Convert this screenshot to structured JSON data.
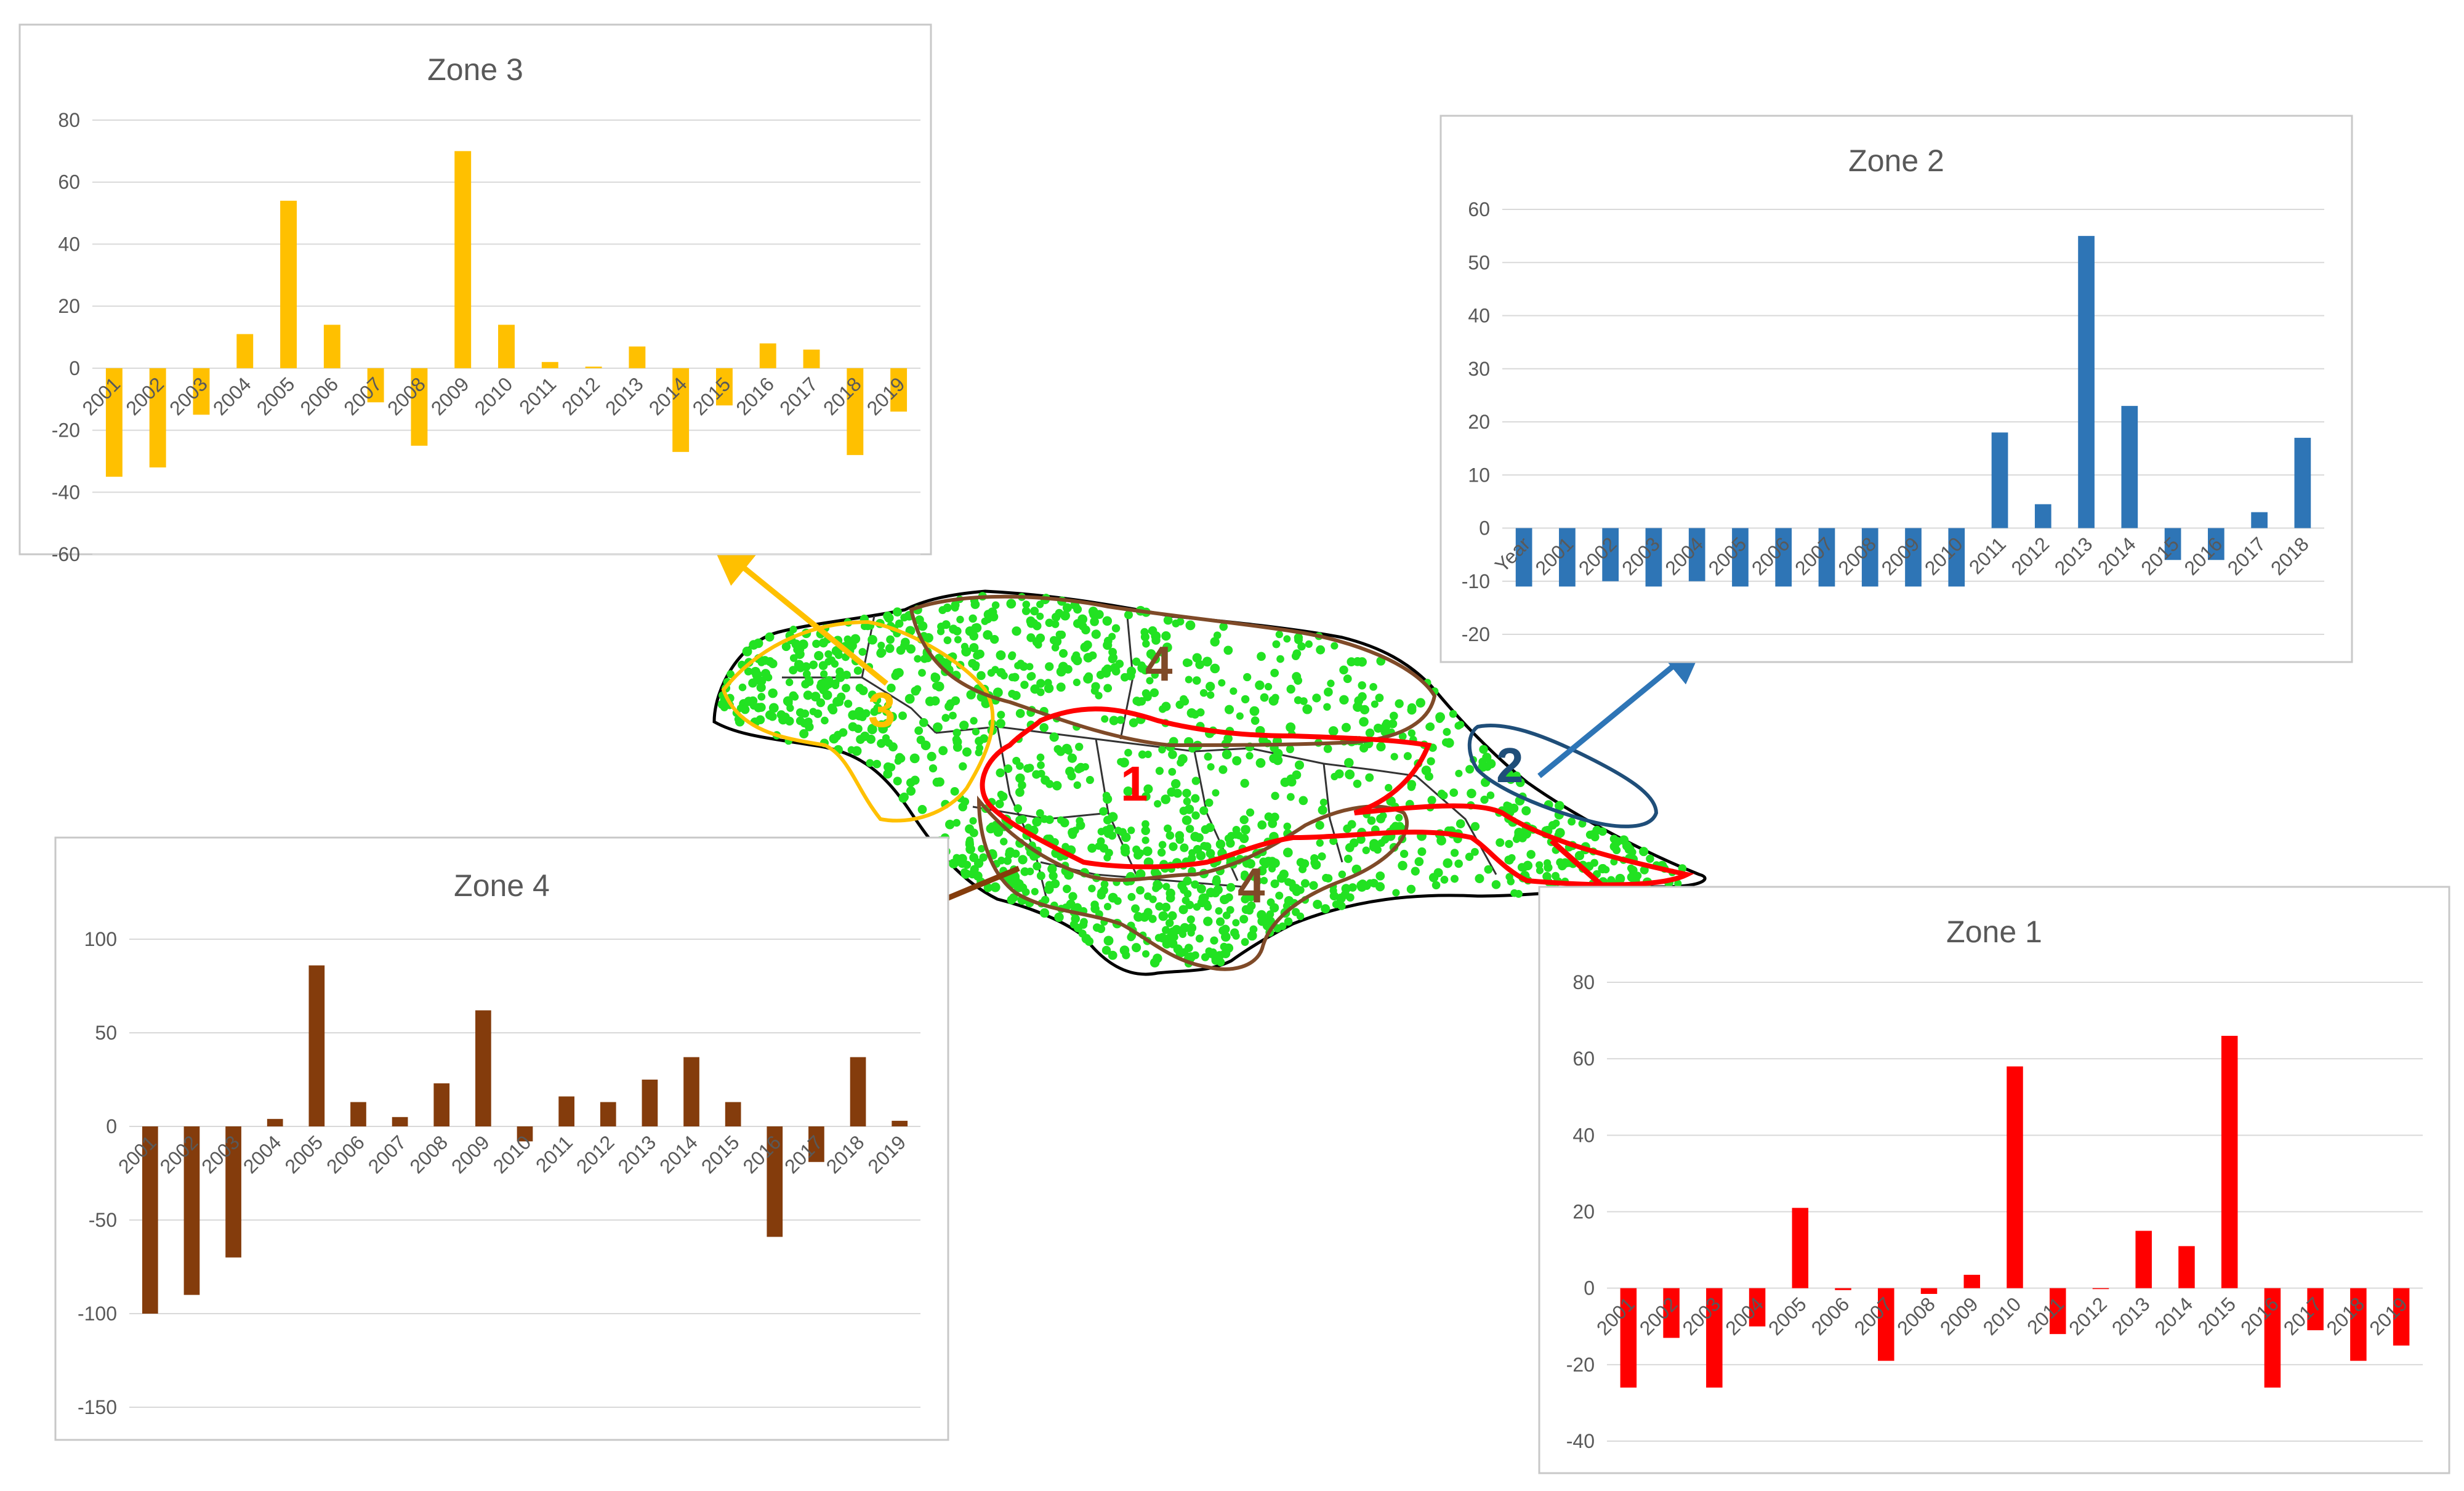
{
  "chart_data": [
    {
      "id": "zone3",
      "type": "bar",
      "title": "Zone 3",
      "color": "#FFC000",
      "categories": [
        "2001",
        "2002",
        "2003",
        "2004",
        "2005",
        "2006",
        "2007",
        "2008",
        "2009",
        "2010",
        "2011",
        "2012",
        "2013",
        "2014",
        "2015",
        "2016",
        "2017",
        "2018",
        "2019"
      ],
      "values": [
        -35,
        -32,
        -15,
        11,
        54,
        14,
        -11,
        -25,
        70,
        14,
        2,
        0.5,
        7,
        -27,
        -12,
        8,
        6,
        -28,
        -14
      ],
      "ylim": [
        -60,
        80
      ],
      "yticks": [
        -60,
        -40,
        -20,
        0,
        20,
        40,
        60,
        80
      ],
      "grid": true
    },
    {
      "id": "zone2",
      "type": "bar",
      "title": "Zone 2",
      "color": "#2E75B6",
      "categories": [
        "Year",
        "2001",
        "2002",
        "2003",
        "2004",
        "2005",
        "2006",
        "2007",
        "2008",
        "2009",
        "2010",
        "2011",
        "2012",
        "2013",
        "2014",
        "2015",
        "2016",
        "2017",
        "2018"
      ],
      "values": [
        -11,
        -11,
        -10,
        -11,
        -10,
        -11,
        -11,
        -11,
        -11,
        -11,
        -11,
        18,
        4.5,
        55,
        23,
        -6,
        -6,
        3,
        17
      ],
      "ylim": [
        -20,
        60
      ],
      "yticks": [
        -20,
        -10,
        0,
        10,
        20,
        30,
        40,
        50,
        60
      ],
      "grid": true
    },
    {
      "id": "zone4",
      "type": "bar",
      "title": "Zone 4",
      "color": "#843C0C",
      "categories": [
        "2001",
        "2002",
        "2003",
        "2004",
        "2005",
        "2006",
        "2007",
        "2008",
        "2009",
        "2010",
        "2011",
        "2012",
        "2013",
        "2014",
        "2015",
        "2016",
        "2017",
        "2018",
        "2019"
      ],
      "values": [
        -100,
        -90,
        -70,
        4,
        86,
        13,
        5,
        23,
        62,
        -8,
        16,
        13,
        25,
        37,
        13,
        -59,
        -19,
        37,
        3
      ],
      "ylim": [
        -150,
        100
      ],
      "yticks": [
        -150,
        -100,
        -50,
        0,
        50,
        100
      ],
      "grid": true
    },
    {
      "id": "zone1",
      "type": "bar",
      "title": "Zone 1",
      "color": "#FF0000",
      "categories": [
        "2001",
        "2002",
        "2003",
        "2004",
        "2005",
        "2006",
        "2007",
        "2008",
        "2009",
        "2010",
        "2011",
        "2012",
        "2013",
        "2014",
        "2015",
        "2016",
        "2017",
        "2018",
        "2019"
      ],
      "values": [
        -26,
        -13,
        -26,
        -10,
        21,
        -0.5,
        -19,
        -1.5,
        3.5,
        58,
        -12,
        0,
        15,
        11,
        66,
        -26,
        -11,
        -19,
        -15
      ],
      "ylim": [
        -40,
        80
      ],
      "yticks": [
        -40,
        -20,
        0,
        20,
        40,
        60,
        80
      ],
      "grid": true
    }
  ],
  "map": {
    "zone_labels": [
      "1",
      "2",
      "3",
      "4",
      "4"
    ],
    "zone_colors": {
      "zone1": "#FF0000",
      "zone2": "#1F4E79",
      "zone3": "#FFC000",
      "zone4": "#7F4A28",
      "points": "#22E222",
      "outline": "#000000"
    }
  }
}
